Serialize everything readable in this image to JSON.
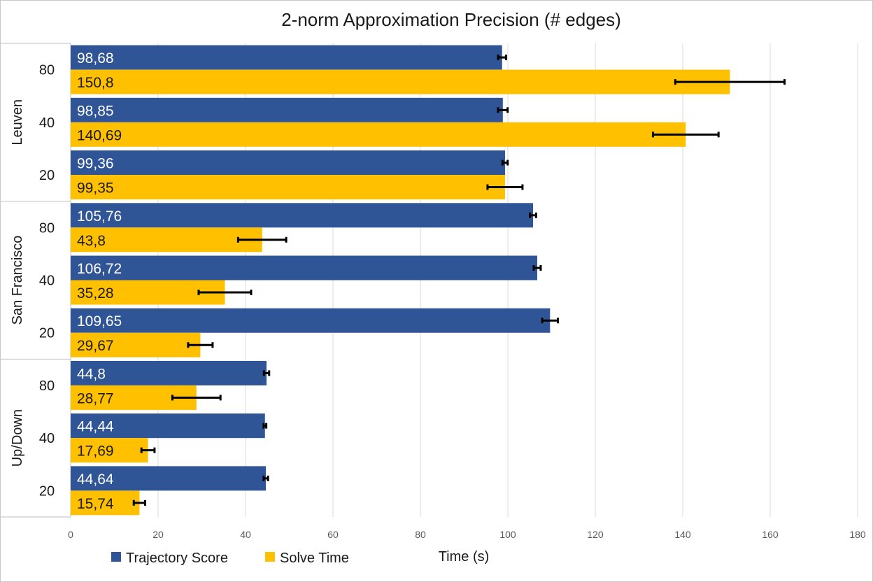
{
  "chart_data": {
    "type": "bar",
    "orientation": "horizontal",
    "title": "2-norm Approximation Precision (# edges)",
    "xlabel": "Time (s)",
    "ylabel": "",
    "xlim": [
      0,
      180
    ],
    "x_ticks": [
      0,
      20,
      40,
      60,
      80,
      100,
      120,
      140,
      160,
      180
    ],
    "grid": true,
    "legend_position": "bottom-left",
    "groups": [
      {
        "name": "Leuven",
        "categories": [
          "80",
          "40",
          "20"
        ]
      },
      {
        "name": "San Francisco",
        "categories": [
          "80",
          "40",
          "20"
        ]
      },
      {
        "name": "Up/Down",
        "categories": [
          "80",
          "40",
          "20"
        ]
      }
    ],
    "series": [
      {
        "name": "Trajectory Score",
        "color": "#2f5597",
        "values": [
          98.68,
          98.85,
          99.36,
          105.76,
          106.72,
          109.65,
          44.8,
          44.44,
          44.64
        ],
        "labels": [
          "98,68",
          "98,85",
          "99,36",
          "105,76",
          "106,72",
          "109,65",
          "44,8",
          "44,44",
          "44,64"
        ],
        "errors": [
          0.9,
          1.1,
          0.6,
          0.7,
          0.8,
          1.8,
          0.6,
          0.3,
          0.5
        ]
      },
      {
        "name": "Solve Time",
        "color": "#ffc000",
        "values": [
          150.8,
          140.69,
          99.35,
          43.8,
          35.28,
          29.67,
          28.77,
          17.69,
          15.74
        ],
        "labels": [
          "150,8",
          "140,69",
          "99,35",
          "43,8",
          "35,28",
          "29,67",
          "28,77",
          "17,69",
          "15,74"
        ],
        "errors": [
          12.5,
          7.5,
          4.0,
          5.5,
          6.0,
          2.8,
          5.5,
          1.5,
          1.3
        ]
      }
    ]
  }
}
